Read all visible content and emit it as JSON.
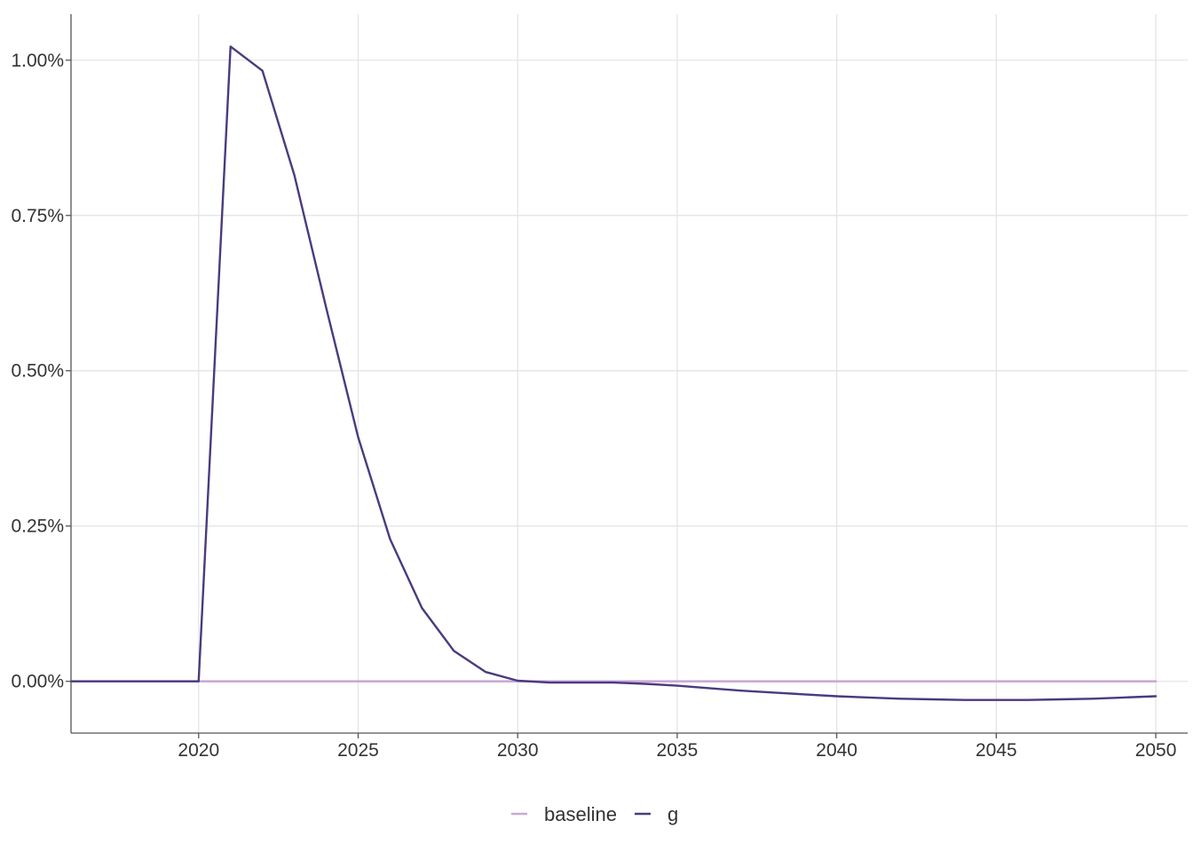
{
  "chart_data": {
    "type": "line",
    "title": "",
    "xlabel": "",
    "ylabel": "",
    "xlim": [
      2016,
      2051
    ],
    "ylim": [
      -0.000833,
      0.01074
    ],
    "x_ticks": [
      2020,
      2025,
      2030,
      2035,
      2040,
      2045,
      2050
    ],
    "x_tick_labels": [
      "2020",
      "2025",
      "2030",
      "2035",
      "2040",
      "2045",
      "2050"
    ],
    "y_ticks": [
      0,
      0.0025,
      0.005,
      0.0075,
      0.01
    ],
    "y_tick_labels": [
      "0.00%",
      "0.25%",
      "0.50%",
      "0.75%",
      "1.00%"
    ],
    "grid": true,
    "legend_position": "bottom",
    "x": [
      2016,
      2017,
      2018,
      2019,
      2020,
      2021,
      2022,
      2023,
      2024,
      2025,
      2026,
      2027,
      2028,
      2029,
      2030,
      2031,
      2032,
      2033,
      2034,
      2035,
      2036,
      2037,
      2038,
      2039,
      2040,
      2041,
      2042,
      2043,
      2044,
      2045,
      2046,
      2047,
      2048,
      2049,
      2050
    ],
    "series": [
      {
        "name": "baseline",
        "color": "#c9a9d6",
        "values": [
          0,
          0,
          0,
          0,
          0,
          0,
          0,
          0,
          0,
          0,
          0,
          0,
          0,
          0,
          0,
          0,
          0,
          0,
          0,
          0,
          0,
          0,
          0,
          0,
          0,
          0,
          0,
          0,
          0,
          0,
          0,
          0,
          0,
          0,
          0
        ]
      },
      {
        "name": "g",
        "color": "#4b3a7e",
        "values": [
          0,
          0,
          0,
          0,
          0,
          0.01022,
          0.00983,
          0.00815,
          0.00601,
          0.00393,
          0.00229,
          0.00118,
          0.00049,
          0.00015,
          1e-05,
          -2e-05,
          -2e-05,
          -2e-05,
          -4e-05,
          -7e-05,
          -0.00011,
          -0.00015,
          -0.00018,
          -0.00021,
          -0.00024,
          -0.00026,
          -0.00028,
          -0.00029,
          -0.0003,
          -0.0003,
          -0.0003,
          -0.00029,
          -0.00028,
          -0.00026,
          -0.00024
        ]
      }
    ]
  }
}
